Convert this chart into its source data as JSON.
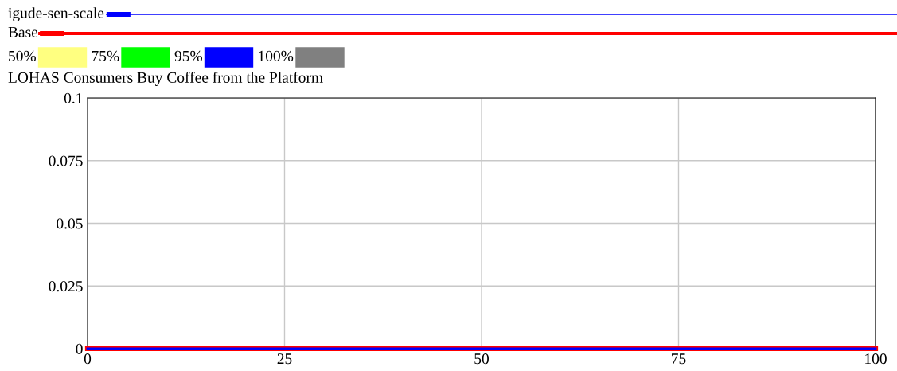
{
  "chart_data": {
    "type": "line",
    "title": "LOHAS Consumers Buy Coffee from the Platform",
    "x": [
      0,
      100
    ],
    "series": [
      {
        "name": "50%",
        "type": "area",
        "color": "#ffff80",
        "values": [
          null,
          null
        ]
      },
      {
        "name": "75%",
        "type": "area",
        "color": "#00ff00",
        "values": [
          null,
          null
        ]
      },
      {
        "name": "95%",
        "type": "area",
        "color": "#0000ff",
        "values": [
          null,
          null
        ]
      },
      {
        "name": "100%",
        "type": "area",
        "color": "#808080",
        "values": [
          null,
          null
        ]
      },
      {
        "name": "Base",
        "color": "#ff0000",
        "values": [
          0,
          0
        ]
      },
      {
        "name": "igude-sen-scale",
        "color": "#0000ff",
        "values": [
          0,
          0
        ]
      }
    ],
    "xlim": [
      0,
      100
    ],
    "xticks": [
      0,
      25,
      50,
      75,
      100
    ],
    "ylim": [
      0,
      0.1
    ],
    "yticks": [
      0,
      0.025,
      0.05,
      0.075,
      0.1
    ],
    "grid": true,
    "legend": "top left"
  }
}
